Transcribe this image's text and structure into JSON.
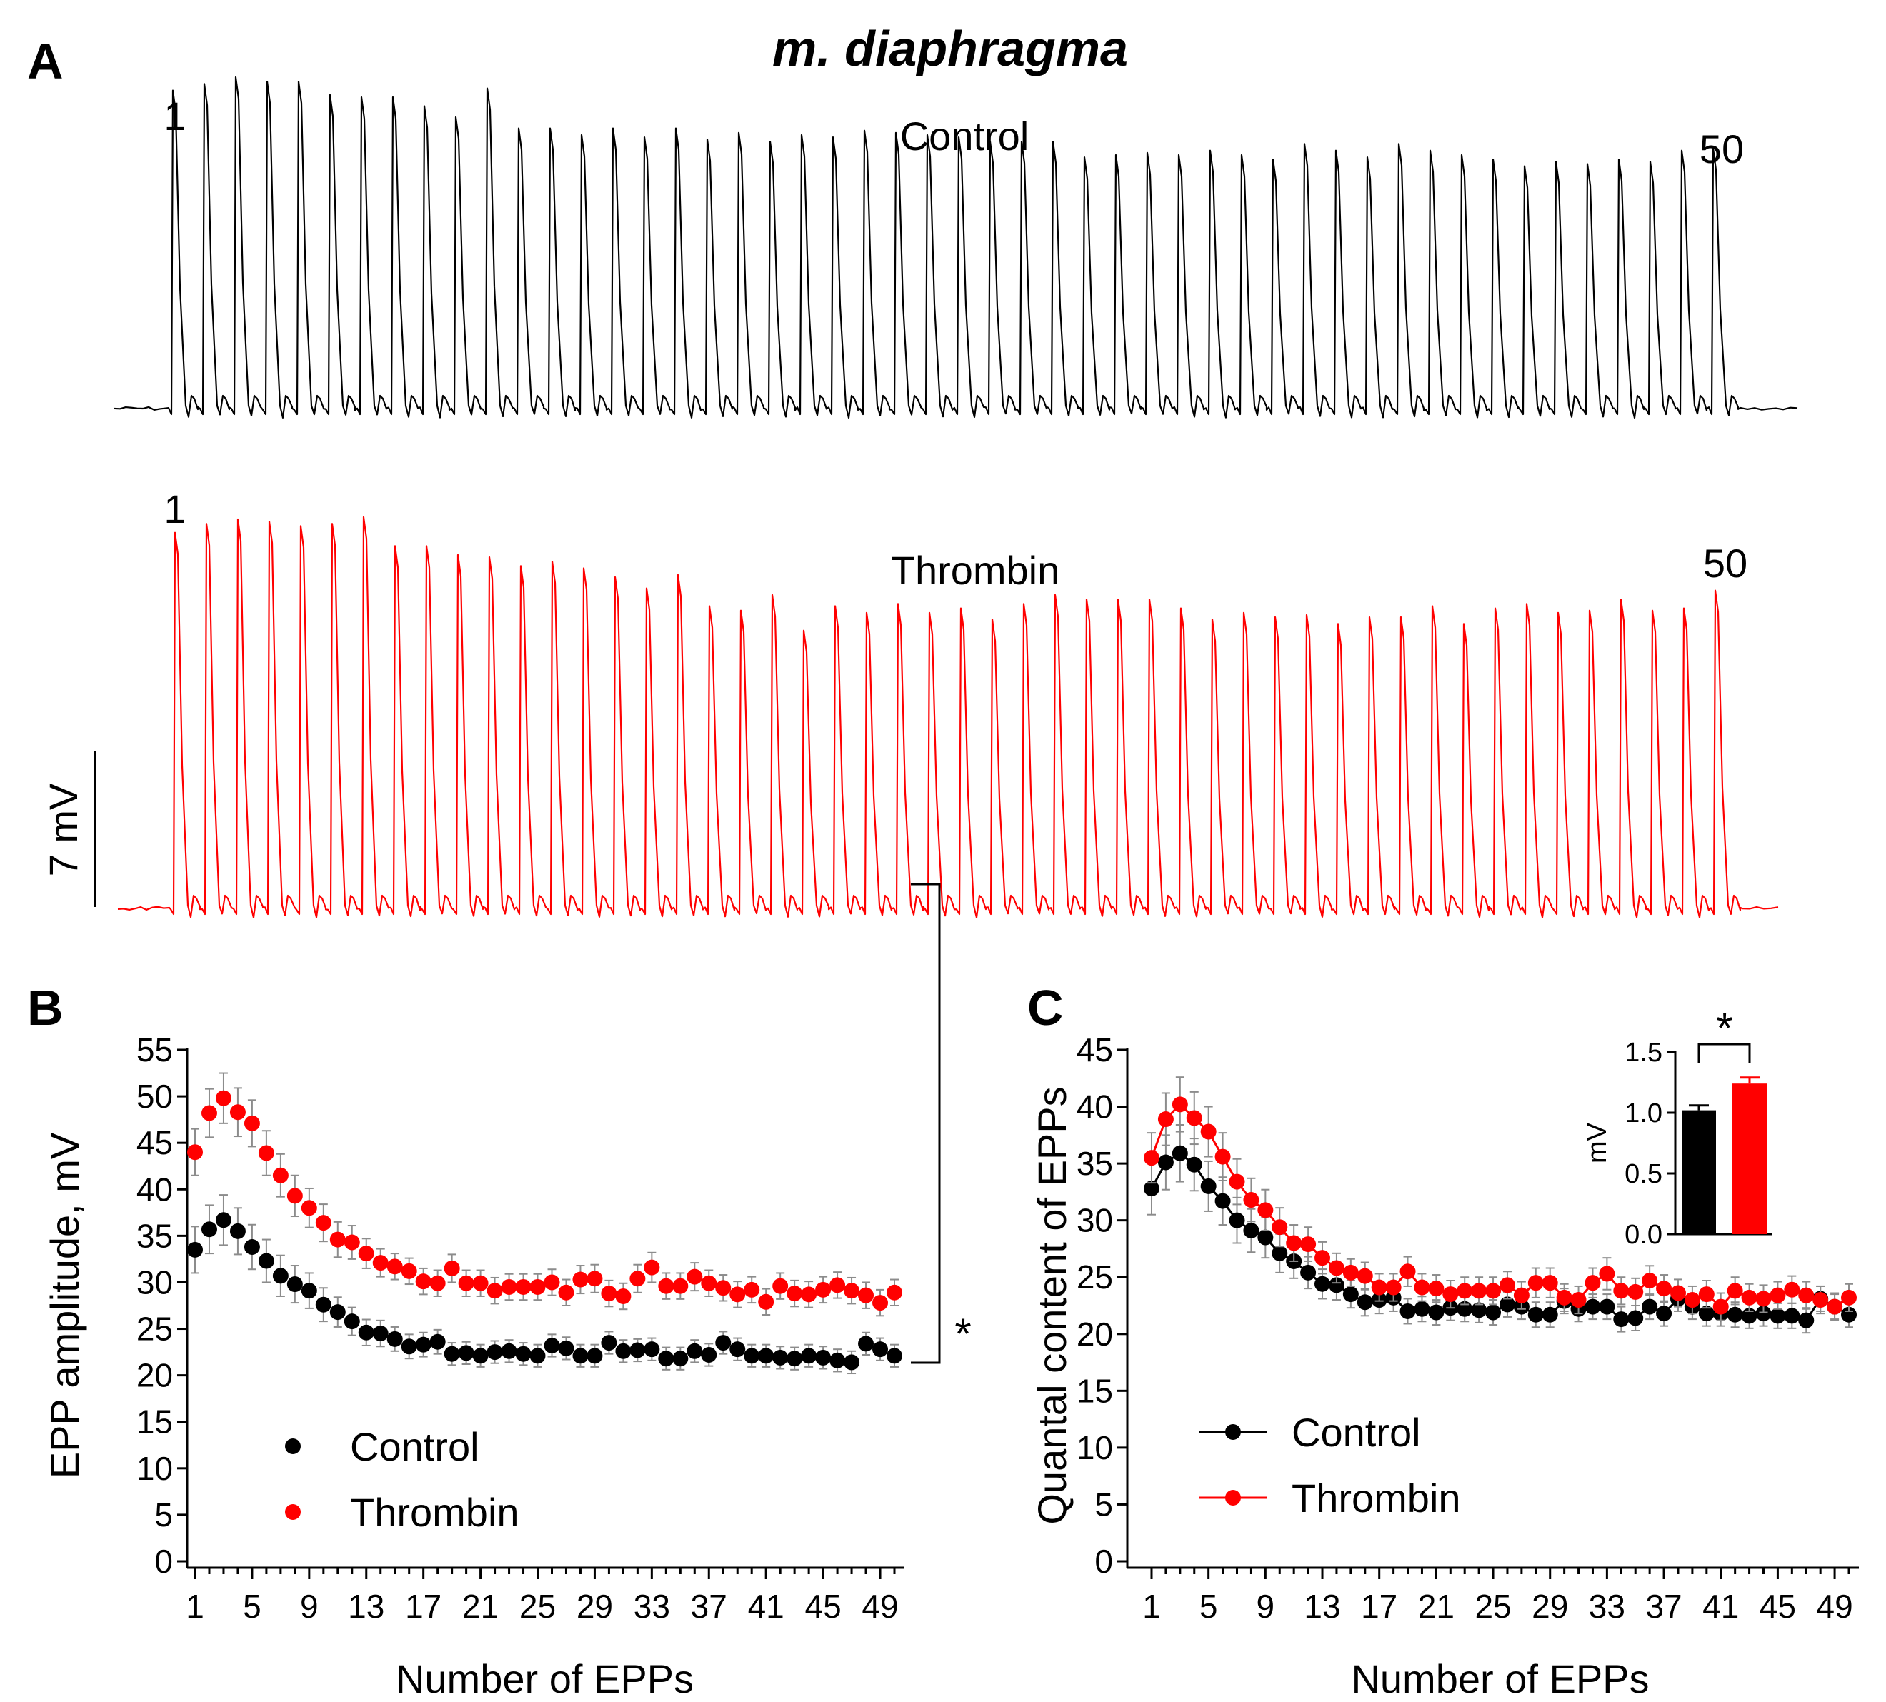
{
  "figure": {
    "title": "m. diaphragma",
    "colors": {
      "control": "#000000",
      "thrombin": "#ff0000",
      "error": "#8c8c8c"
    }
  },
  "panel_a": {
    "letter": "A",
    "control_label": "Control",
    "thrombin_label": "Thrombin",
    "first_stim_label": "1",
    "last_stim_label": "50",
    "scale_bar_label": "7 mV"
  },
  "panel_b": {
    "letter": "B",
    "significance": "*"
  },
  "panel_c": {
    "letter": "C",
    "inset_significance": "*"
  },
  "chart_data": [
    {
      "id": "traces",
      "type": "line",
      "title": "m. diaphragma",
      "series": [
        {
          "name": "Control",
          "color": "#000000",
          "units": "mV",
          "peaks": [
            14.3,
            14.6,
            14.9,
            14.7,
            14.7,
            14.1,
            14.0,
            14.0,
            13.6,
            13.1,
            14.4,
            12.6,
            12.6,
            12.3,
            12.6,
            12.2,
            12.6,
            12.1,
            12.4,
            12.0,
            12.3,
            12.2,
            12.5,
            12.4,
            12.3,
            12.2,
            12.0,
            12.0,
            12.0,
            11.3,
            11.4,
            11.5,
            11.4,
            11.6,
            11.4,
            11.2,
            11.9,
            11.6,
            11.3,
            11.9,
            11.6,
            11.4,
            11.2,
            10.9,
            11.1,
            11.0,
            11.2,
            11.1,
            11.6,
            11.7
          ]
        },
        {
          "name": "Thrombin",
          "color": "#ff0000",
          "units": "mV",
          "peaks": [
            16.9,
            17.3,
            17.5,
            17.4,
            17.2,
            17.3,
            17.6,
            16.3,
            16.3,
            15.9,
            15.8,
            15.4,
            15.6,
            15.3,
            14.9,
            14.4,
            15.0,
            13.6,
            13.4,
            14.1,
            12.5,
            13.6,
            13.3,
            13.7,
            13.3,
            13.5,
            13.0,
            13.7,
            14.1,
            13.9,
            13.9,
            13.9,
            13.5,
            13.0,
            13.3,
            13.1,
            13.2,
            12.8,
            13.1,
            13.1,
            13.6,
            12.8,
            13.5,
            13.7,
            13.3,
            13.4,
            13.9,
            13.4,
            13.5,
            14.3
          ]
        }
      ]
    },
    {
      "id": "epp_amplitude",
      "type": "scatter",
      "xlabel": "Number of EPPs",
      "ylabel": "EPP amplitude, mV",
      "xlim": [
        1,
        50
      ],
      "ylim": [
        0,
        55
      ],
      "xticks": [
        1,
        5,
        9,
        13,
        17,
        21,
        25,
        29,
        33,
        37,
        41,
        45,
        49
      ],
      "yticks": [
        0,
        5,
        10,
        15,
        20,
        25,
        30,
        35,
        40,
        45,
        50,
        55
      ],
      "error_bars": "SEM",
      "x": [
        1,
        2,
        3,
        4,
        5,
        6,
        7,
        8,
        9,
        10,
        11,
        12,
        13,
        14,
        15,
        16,
        17,
        18,
        19,
        20,
        21,
        22,
        23,
        24,
        25,
        26,
        27,
        28,
        29,
        30,
        31,
        32,
        33,
        34,
        35,
        36,
        37,
        38,
        39,
        40,
        41,
        42,
        43,
        44,
        45,
        46,
        47,
        48,
        49,
        50
      ],
      "series": [
        {
          "name": "Control",
          "color": "#000000",
          "values": [
            33.5,
            35.7,
            36.7,
            35.5,
            33.8,
            32.3,
            30.7,
            29.8,
            29.1,
            27.6,
            26.8,
            25.8,
            24.6,
            24.5,
            23.9,
            23.1,
            23.3,
            23.6,
            22.3,
            22.4,
            22.1,
            22.5,
            22.6,
            22.3,
            22.1,
            23.2,
            22.9,
            22.1,
            22.1,
            23.5,
            22.6,
            22.7,
            22.8,
            21.8,
            21.8,
            22.6,
            22.2,
            23.5,
            22.8,
            22.1,
            22.1,
            21.9,
            21.8,
            22.1,
            21.9,
            21.6,
            21.4,
            23.4,
            22.8,
            22.1
          ],
          "errors": [
            2.5,
            2.6,
            2.7,
            2.5,
            2.4,
            2.3,
            2.2,
            2.0,
            1.9,
            1.8,
            1.6,
            1.5,
            1.4,
            1.4,
            1.3,
            1.3,
            1.3,
            1.3,
            1.2,
            1.2,
            1.2,
            1.2,
            1.2,
            1.2,
            1.2,
            1.2,
            1.2,
            1.2,
            1.2,
            1.2,
            1.2,
            1.2,
            1.2,
            1.2,
            1.2,
            1.2,
            1.2,
            1.2,
            1.2,
            1.2,
            1.2,
            1.2,
            1.2,
            1.2,
            1.2,
            1.2,
            1.2,
            1.2,
            1.2,
            1.2
          ]
        },
        {
          "name": "Thrombin",
          "color": "#ff0000",
          "values": [
            44.0,
            48.2,
            49.8,
            48.3,
            47.1,
            43.9,
            41.5,
            39.3,
            38.0,
            36.4,
            34.6,
            34.3,
            33.1,
            32.1,
            31.7,
            31.2,
            30.1,
            29.9,
            31.5,
            29.9,
            29.9,
            29.1,
            29.5,
            29.5,
            29.5,
            30.0,
            28.9,
            30.3,
            30.4,
            28.8,
            28.5,
            30.4,
            31.6,
            29.6,
            29.6,
            30.6,
            29.9,
            29.4,
            28.7,
            29.2,
            27.9,
            29.6,
            28.8,
            28.7,
            29.2,
            29.7,
            29.1,
            28.6,
            27.8,
            28.9
          ],
          "errors": [
            2.5,
            2.6,
            2.7,
            2.6,
            2.5,
            2.4,
            2.3,
            2.2,
            2.1,
            2.0,
            1.9,
            1.8,
            1.6,
            1.5,
            1.4,
            1.4,
            1.4,
            1.4,
            1.5,
            1.4,
            1.4,
            1.4,
            1.4,
            1.4,
            1.4,
            1.4,
            1.4,
            1.5,
            1.5,
            1.4,
            1.4,
            1.5,
            1.6,
            1.4,
            1.4,
            1.5,
            1.4,
            1.4,
            1.4,
            1.4,
            1.4,
            1.4,
            1.4,
            1.4,
            1.4,
            1.4,
            1.4,
            1.4,
            1.4,
            1.4
          ]
        }
      ],
      "legend": [
        "Control",
        "Thrombin"
      ],
      "legend_position": "bottom-left"
    },
    {
      "id": "quantal_content",
      "type": "line",
      "xlabel": "Number of EPPs",
      "ylabel": "Quantal content of EPPs",
      "xlim": [
        1,
        50
      ],
      "ylim": [
        0,
        45
      ],
      "xticks": [
        1,
        5,
        9,
        13,
        17,
        21,
        25,
        29,
        33,
        37,
        41,
        45,
        49
      ],
      "yticks": [
        0,
        5,
        10,
        15,
        20,
        25,
        30,
        35,
        40,
        45
      ],
      "error_bars": "SEM",
      "x": [
        1,
        2,
        3,
        4,
        5,
        6,
        7,
        8,
        9,
        10,
        11,
        12,
        13,
        14,
        15,
        16,
        17,
        18,
        19,
        20,
        21,
        22,
        23,
        24,
        25,
        26,
        27,
        28,
        29,
        30,
        31,
        32,
        33,
        34,
        35,
        36,
        37,
        38,
        39,
        40,
        41,
        42,
        43,
        44,
        45,
        46,
        47,
        48,
        49,
        50
      ],
      "series": [
        {
          "name": "Control",
          "color": "#000000",
          "values": [
            32.8,
            35.1,
            35.9,
            34.9,
            33.0,
            31.7,
            30.0,
            29.1,
            28.5,
            27.1,
            26.4,
            25.4,
            24.4,
            24.3,
            23.5,
            22.8,
            23.0,
            23.2,
            22.0,
            22.2,
            21.9,
            22.3,
            22.2,
            22.1,
            21.9,
            22.6,
            22.4,
            21.7,
            21.7,
            22.9,
            22.2,
            22.4,
            22.4,
            21.3,
            21.4,
            22.4,
            21.8,
            23.1,
            22.4,
            21.8,
            21.8,
            21.7,
            21.6,
            21.8,
            21.6,
            21.6,
            21.2,
            23.1,
            22.4,
            21.7
          ],
          "errors": [
            2.3,
            2.4,
            2.5,
            2.3,
            2.2,
            2.1,
            2.0,
            1.9,
            1.8,
            1.7,
            1.5,
            1.4,
            1.3,
            1.3,
            1.2,
            1.2,
            1.2,
            1.2,
            1.1,
            1.1,
            1.1,
            1.1,
            1.1,
            1.1,
            1.1,
            1.1,
            1.1,
            1.1,
            1.1,
            1.1,
            1.1,
            1.1,
            1.1,
            1.1,
            1.1,
            1.1,
            1.1,
            1.1,
            1.1,
            1.1,
            1.1,
            1.1,
            1.1,
            1.1,
            1.1,
            1.1,
            1.1,
            1.1,
            1.1,
            1.1
          ]
        },
        {
          "name": "Thrombin",
          "color": "#ff0000",
          "values": [
            35.5,
            38.9,
            40.2,
            39.0,
            37.8,
            35.6,
            33.4,
            31.8,
            30.9,
            29.4,
            28.0,
            27.9,
            26.7,
            25.8,
            25.4,
            25.1,
            24.1,
            24.1,
            25.5,
            24.1,
            24.0,
            23.5,
            23.8,
            23.8,
            23.8,
            24.3,
            23.4,
            24.5,
            24.5,
            23.2,
            23.0,
            24.5,
            25.3,
            23.8,
            23.7,
            24.7,
            24.0,
            23.6,
            23.0,
            23.5,
            22.4,
            23.8,
            23.2,
            23.1,
            23.4,
            23.9,
            23.4,
            23.0,
            22.4,
            23.2
          ],
          "errors": [
            2.2,
            2.3,
            2.4,
            2.3,
            2.2,
            2.1,
            2.0,
            1.9,
            1.8,
            1.7,
            1.6,
            1.5,
            1.4,
            1.3,
            1.2,
            1.2,
            1.2,
            1.2,
            1.3,
            1.2,
            1.2,
            1.2,
            1.2,
            1.2,
            1.2,
            1.2,
            1.2,
            1.3,
            1.3,
            1.2,
            1.2,
            1.3,
            1.4,
            1.2,
            1.2,
            1.3,
            1.2,
            1.2,
            1.2,
            1.2,
            1.2,
            1.2,
            1.2,
            1.2,
            1.2,
            1.2,
            1.2,
            1.2,
            1.2,
            1.2
          ]
        }
      ],
      "legend": [
        "Control",
        "Thrombin"
      ],
      "legend_position": "bottom-left"
    },
    {
      "id": "inset",
      "type": "bar",
      "ylabel": "mV",
      "ylim": [
        0,
        1.5
      ],
      "yticks": [
        "0.0",
        "0.5",
        "1.0",
        "1.5"
      ],
      "categories": [
        "Control",
        "Thrombin"
      ],
      "values": [
        1.02,
        1.24
      ],
      "errors": [
        0.04,
        0.05
      ],
      "colors": [
        "#000000",
        "#ff0000"
      ]
    }
  ]
}
